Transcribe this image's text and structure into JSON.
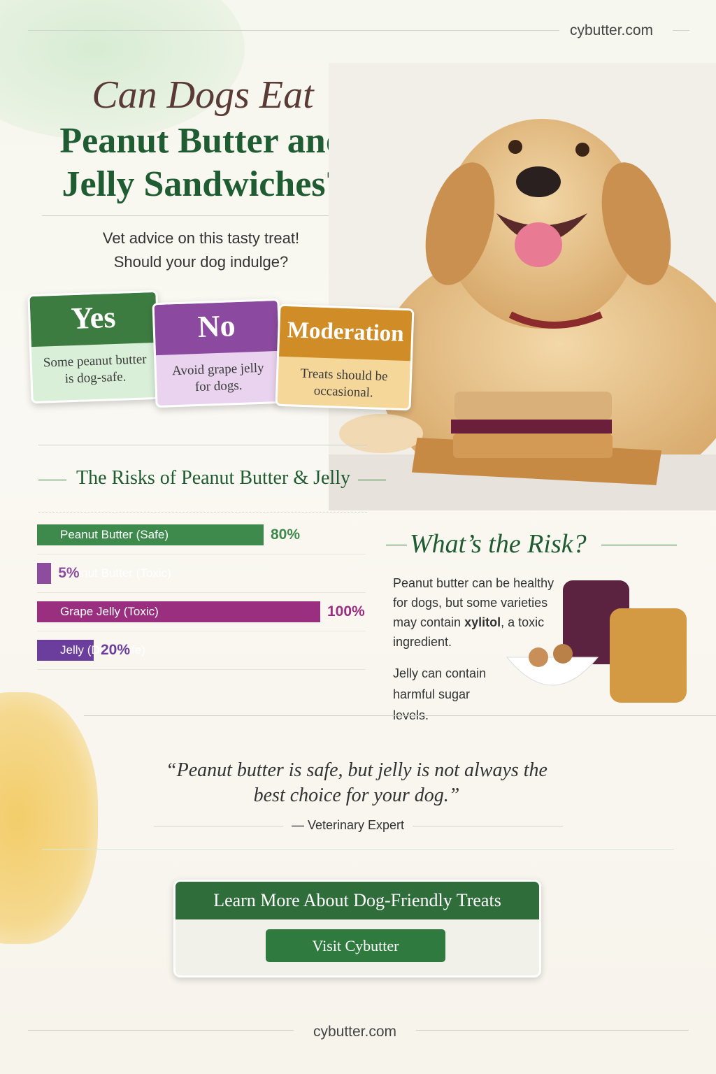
{
  "site": "cybutter.com",
  "title": {
    "line1": "Can Dogs Eat",
    "line2": "Peanut Butter and",
    "line3": "Jelly Sandwiches?"
  },
  "subtitle": {
    "line1": "Vet advice on this tasty treat!",
    "line2": "Should your dog indulge?"
  },
  "cards": [
    {
      "title": "Yes",
      "text": "Some peanut butter is dog-safe."
    },
    {
      "title": "No",
      "text": "Avoid grape jelly for dogs."
    },
    {
      "title": "Moderation",
      "text": "Treats should be occasional."
    }
  ],
  "chart_data": {
    "type": "hbar",
    "title": "The Risks of Peanut Butter & Jelly",
    "categories": [
      "Peanut Butter (Safe)",
      "Peanut Butter (Toxic)",
      "Grape Jelly (Toxic)",
      "Jelly (Dog-Safe)"
    ],
    "values": [
      80,
      5,
      100,
      20
    ],
    "value_labels": [
      "80%",
      "5%",
      "100%",
      "20%"
    ],
    "colors": [
      "#3d8a4c",
      "#8e4c9e",
      "#9a2f80",
      "#6b3d9c"
    ],
    "xlim": [
      0,
      100
    ]
  },
  "risk": {
    "title": "What’s the Risk?",
    "paragraph1": [
      "Peanut butter can be healthy for dogs, but some varieties may contain ",
      "xylitol",
      ", a toxic ingredient."
    ],
    "paragraph2": "Jelly can contain harmful sugar levels."
  },
  "quote": {
    "text": "“Peanut butter is safe, but jelly is not always the best choice for your dog.”",
    "attribution": "— Veterinary Expert"
  },
  "cta": {
    "heading": "Learn More About Dog-Friendly Treats",
    "button": "Visit Cybutter"
  },
  "footer": "cybutter.com"
}
